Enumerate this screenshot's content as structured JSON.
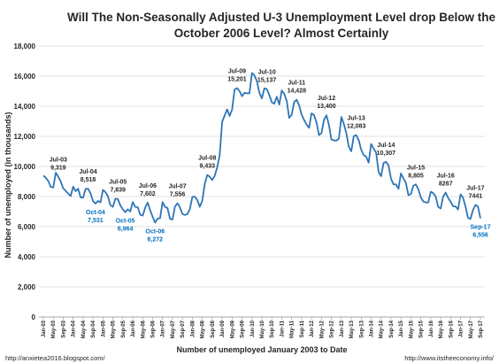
{
  "chart_data": {
    "type": "line",
    "title_lines": [
      "Will The Non-Seasonally Adjusted U-3 Unemployment Level drop Below the",
      "October 2006 Level? Almost Certainly"
    ],
    "ylabel": "Number of unemployed (in thousands)",
    "xlabel": "Number of unemployed January 2003 to Date",
    "ylim": [
      0,
      18000
    ],
    "y_ticks": [
      "0",
      "2,000",
      "4,000",
      "6,000",
      "8,000",
      "10,000",
      "12,000",
      "14,000",
      "16,000",
      "18,000"
    ],
    "x_tick_labels": [
      "Jan-03",
      "May-03",
      "Sep-03",
      "Jan-04",
      "May-04",
      "Sep-04",
      "Jan-05",
      "May-05",
      "Sep-05",
      "Jan-06",
      "May-06",
      "Sep-06",
      "Jan-07",
      "May-07",
      "Sep-07",
      "Jan-08",
      "May-08",
      "Sep-08",
      "Jan-09",
      "May-09",
      "Sep-09",
      "Jan-10",
      "May-10",
      "Sep-10",
      "Jan-11",
      "May-11",
      "Sep-11",
      "Jan-12",
      "May-12",
      "Sep-12",
      "Jan-13",
      "May-13",
      "Sep-13",
      "Jan-14",
      "May-14",
      "Sep-14",
      "Jan-15",
      "May-15",
      "Sep-15",
      "Jan-16",
      "May-16",
      "Sep-16",
      "Jan-17",
      "May-17",
      "Sep-17"
    ],
    "grid": true,
    "series_color": "#2e75b6",
    "highlight_color": "#0070c0",
    "annotations": [
      {
        "month": "Jul-03",
        "label": "Jul-03",
        "value": "9,319",
        "style": "peak"
      },
      {
        "month": "Jul-04",
        "label": "Jul-04",
        "value": "8,518",
        "style": "peak"
      },
      {
        "month": "Oct-04",
        "label": "Oct-04",
        "value": "7,531",
        "style": "low"
      },
      {
        "month": "Jul-05",
        "label": "Jul-05",
        "value": "7,839",
        "style": "peak"
      },
      {
        "month": "Oct-05",
        "label": "Oct-05",
        "value": "6,964",
        "style": "low"
      },
      {
        "month": "Jul-06",
        "label": "Jul-06",
        "value": "7,602",
        "style": "peak"
      },
      {
        "month": "Oct-06",
        "label": "Oct-06",
        "value": "6,272",
        "style": "low"
      },
      {
        "month": "Jul-07",
        "label": "Jul-07",
        "value": "7,556",
        "style": "peak"
      },
      {
        "month": "Jul-08",
        "label": "Jul-08",
        "value": "9,433",
        "style": "peak"
      },
      {
        "month": "Jul-09",
        "label": "Jul-09",
        "value": "15,201",
        "style": "peak"
      },
      {
        "month": "Jul-10",
        "label": "Jul-10",
        "value": "15,137",
        "style": "peak"
      },
      {
        "month": "Jul-11",
        "label": "Jul-11",
        "value": "14,428",
        "style": "peak"
      },
      {
        "month": "Jul-12",
        "label": "Jul-12",
        "value": "13,400",
        "style": "peak"
      },
      {
        "month": "Jul-13",
        "label": "Jul-13",
        "value": "12,083",
        "style": "peak"
      },
      {
        "month": "Jul-14",
        "label": "Jul-14",
        "value": "10,307",
        "style": "peak"
      },
      {
        "month": "Jul-15",
        "label": "Jul-15",
        "value": "8,805",
        "style": "peak"
      },
      {
        "month": "Jul-16",
        "label": "Jul-16",
        "value": "8267",
        "style": "peak"
      },
      {
        "month": "Jul-17",
        "label": "Jul-17",
        "value": "7441",
        "style": "peak"
      },
      {
        "month": "Sep-17",
        "label": "Sep-17",
        "value": "6,556",
        "style": "low"
      }
    ],
    "months": [
      "Jan-03",
      "Feb-03",
      "Mar-03",
      "Apr-03",
      "May-03",
      "Jun-03",
      "Jul-03",
      "Aug-03",
      "Sep-03",
      "Oct-03",
      "Nov-03",
      "Dec-03",
      "Jan-04",
      "Feb-04",
      "Mar-04",
      "Apr-04",
      "May-04",
      "Jun-04",
      "Jul-04",
      "Aug-04",
      "Sep-04",
      "Oct-04",
      "Nov-04",
      "Dec-04",
      "Jan-05",
      "Feb-05",
      "Mar-05",
      "Apr-05",
      "May-05",
      "Jun-05",
      "Jul-05",
      "Aug-05",
      "Sep-05",
      "Oct-05",
      "Nov-05",
      "Dec-05",
      "Jan-06",
      "Feb-06",
      "Mar-06",
      "Apr-06",
      "May-06",
      "Jun-06",
      "Jul-06",
      "Aug-06",
      "Sep-06",
      "Oct-06",
      "Nov-06",
      "Dec-06",
      "Jan-07",
      "Feb-07",
      "Mar-07",
      "Apr-07",
      "May-07",
      "Jun-07",
      "Jul-07",
      "Aug-07",
      "Sep-07",
      "Oct-07",
      "Nov-07",
      "Dec-07",
      "Jan-08",
      "Feb-08",
      "Mar-08",
      "Apr-08",
      "May-08",
      "Jun-08",
      "Jul-08",
      "Aug-08",
      "Sep-08",
      "Oct-08",
      "Nov-08",
      "Dec-08",
      "Jan-09",
      "Feb-09",
      "Mar-09",
      "Apr-09",
      "May-09",
      "Jun-09",
      "Jul-09",
      "Aug-09",
      "Sep-09",
      "Oct-09",
      "Nov-09",
      "Dec-09",
      "Jan-10",
      "Feb-10",
      "Mar-10",
      "Apr-10",
      "May-10",
      "Jun-10",
      "Jul-10",
      "Aug-10",
      "Sep-10",
      "Oct-10",
      "Nov-10",
      "Dec-10",
      "Jan-11",
      "Feb-11",
      "Mar-11",
      "Apr-11",
      "May-11",
      "Jun-11",
      "Jul-11",
      "Aug-11",
      "Sep-11",
      "Oct-11",
      "Nov-11",
      "Dec-11",
      "Jan-12",
      "Feb-12",
      "Mar-12",
      "Apr-12",
      "May-12",
      "Jun-12",
      "Jul-12",
      "Aug-12",
      "Sep-12",
      "Oct-12",
      "Nov-12",
      "Dec-12",
      "Jan-13",
      "Feb-13",
      "Mar-13",
      "Apr-13",
      "May-13",
      "Jun-13",
      "Jul-13",
      "Aug-13",
      "Sep-13",
      "Oct-13",
      "Nov-13",
      "Dec-13",
      "Jan-14",
      "Feb-14",
      "Mar-14",
      "Apr-14",
      "May-14",
      "Jun-14",
      "Jul-14",
      "Aug-14",
      "Sep-14",
      "Oct-14",
      "Nov-14",
      "Dec-14",
      "Jan-15",
      "Feb-15",
      "Mar-15",
      "Apr-15",
      "May-15",
      "Jun-15",
      "Jul-15",
      "Aug-15",
      "Sep-15",
      "Oct-15",
      "Nov-15",
      "Dec-15",
      "Jan-16",
      "Feb-16",
      "Mar-16",
      "Apr-16",
      "May-16",
      "Jun-16",
      "Jul-16",
      "Aug-16",
      "Sep-16",
      "Oct-16",
      "Nov-16",
      "Dec-16",
      "Jan-17",
      "Feb-17",
      "Mar-17",
      "Apr-17",
      "May-17",
      "Jun-17",
      "Jul-17",
      "Aug-17",
      "Sep-17"
    ],
    "values": [
      9394,
      9246,
      9026,
      8638,
      8600,
      9585,
      9319,
      8997,
      8543,
      8373,
      8198,
      8038,
      8655,
      8357,
      8521,
      7946,
      7929,
      8509,
      8518,
      8214,
      7700,
      7531,
      7708,
      7612,
      8445,
      8295,
      8017,
      7426,
      7319,
      7861,
      7839,
      7411,
      7151,
      6964,
      7152,
      7007,
      7632,
      7318,
      7294,
      6793,
      6732,
      7255,
      7602,
      7102,
      6657,
      6272,
      6538,
      6567,
      7630,
      7320,
      7231,
      6521,
      6470,
      7339,
      7556,
      7281,
      6844,
      6777,
      6827,
      7175,
      7977,
      7992,
      7764,
      7323,
      7730,
      8842,
      9433,
      9316,
      9095,
      9379,
      9945,
      10741,
      12964,
      13383,
      13789,
      13359,
      13775,
      15106,
      15201,
      15009,
      14665,
      14891,
      14857,
      14862,
      16211,
      16051,
      15661,
      14896,
      14520,
      15192,
      15137,
      14739,
      14265,
      14166,
      14632,
      14111,
      15052,
      14825,
      14348,
      13230,
      13436,
      14281,
      14428,
      14060,
      13444,
      13084,
      12785,
      12565,
      13528,
      13421,
      12916,
      12087,
      12209,
      13090,
      13400,
      12758,
      11795,
      11732,
      11713,
      11845,
      13283,
      12823,
      12218,
      11313,
      11010,
      12012,
      12083,
      11741,
      11102,
      10758,
      10646,
      10252,
      11494,
      11191,
      10916,
      9640,
      9352,
      10223,
      10307,
      10064,
      9187,
      8811,
      8805,
      8508,
      9539,
      9202,
      8898,
      8090,
      8164,
      8721,
      8805,
      8494,
      7948,
      7676,
      7604,
      7612,
      8321,
      8224,
      8001,
      7309,
      7206,
      7993,
      8267,
      7914,
      7660,
      7355,
      7341,
      7138,
      8141,
      7921,
      7336,
      6583,
      6515,
      7101,
      7441,
      7348,
      6556
    ]
  },
  "footer": {
    "left": "http://anxietea2016.blogspot.com/",
    "right": "http://www.itstheeconomy.info/"
  }
}
